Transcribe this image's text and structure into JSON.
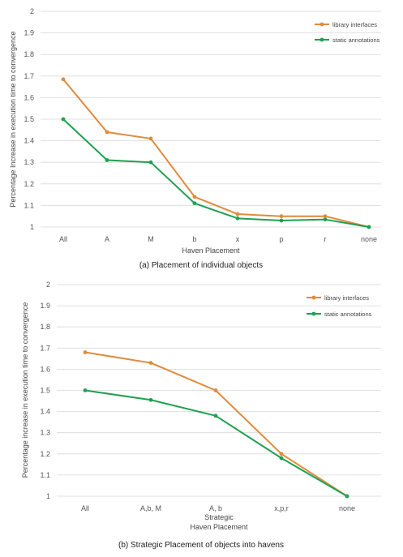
{
  "chart_data": [
    {
      "type": "line",
      "caption": "(a) Placement of individual objects",
      "xlabel": "Haven Placement",
      "ylabel": "Percentage Increase in execution time to convergence",
      "categories": [
        "All",
        "A",
        "M",
        "b",
        "x",
        "p",
        "r",
        "none"
      ],
      "ylim": [
        1,
        2
      ],
      "yticks": [
        "1",
        "1.1",
        "1.2",
        "1.3",
        "1.4",
        "1.5",
        "1.6",
        "1.7",
        "1.8",
        "1.9",
        "2"
      ],
      "grid": true,
      "legend_position": "top-right",
      "series": [
        {
          "name": "library interfaces",
          "color": "#E08A3C",
          "values": [
            1.685,
            1.44,
            1.41,
            1.14,
            1.06,
            1.05,
            1.05,
            1.0
          ]
        },
        {
          "name": "static annotations",
          "color": "#1FA050",
          "values": [
            1.5,
            1.31,
            1.3,
            1.11,
            1.04,
            1.03,
            1.035,
            1.0
          ]
        }
      ]
    },
    {
      "type": "line",
      "caption": "(b) Strategic Placement of objects into havens",
      "xlabel": "Strategic\nHaven Placement",
      "ylabel": "Percentage increase in execution time to convergence",
      "categories": [
        "All",
        "A,b, M",
        "A, b",
        "x,p,r",
        "none"
      ],
      "ylim": [
        1,
        2
      ],
      "yticks": [
        "1",
        "1.1",
        "1.2",
        "1.3",
        "1.4",
        "1.5",
        "1.6",
        "1.7",
        "1.8",
        "1.9",
        "2"
      ],
      "grid": true,
      "legend_position": "top-right",
      "series": [
        {
          "name": "library interfaces",
          "color": "#E08A3C",
          "values": [
            1.68,
            1.63,
            1.5,
            1.2,
            1.0
          ]
        },
        {
          "name": "static annotations",
          "color": "#1FA050",
          "values": [
            1.5,
            1.455,
            1.38,
            1.18,
            1.0
          ]
        }
      ]
    }
  ]
}
